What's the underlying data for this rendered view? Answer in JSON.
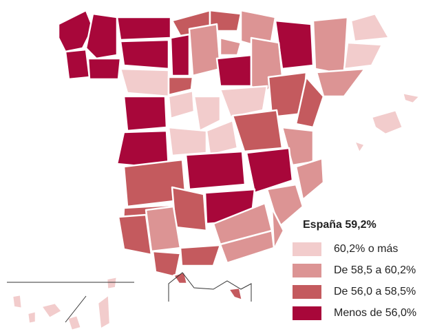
{
  "legend": {
    "title": "España 59,2%",
    "items": [
      {
        "label": "60,2% o más",
        "color": "#f2cccc"
      },
      {
        "label": "De 58,5 a 60,2%",
        "color": "#dc9494"
      },
      {
        "label": "De 56,0 a 58,5%",
        "color": "#c45a5e"
      },
      {
        "label": "Menos de 56,0%",
        "color": "#a8073a"
      }
    ]
  }
}
